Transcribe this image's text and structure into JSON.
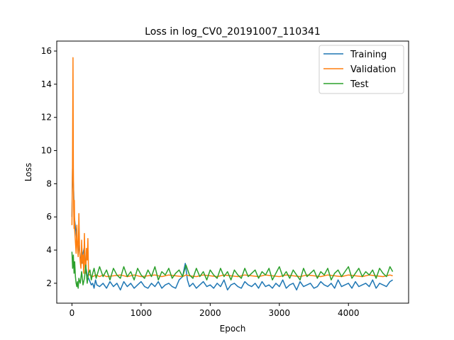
{
  "chart_data": {
    "type": "line",
    "title": "Loss in log_CV0_20191007_110341",
    "xlabel": "Epoch",
    "ylabel": "Loss",
    "xlim": [
      -220,
      4870
    ],
    "ylim": [
      0.8,
      16.6
    ],
    "xticks": [
      0,
      1000,
      2000,
      3000,
      4000
    ],
    "yticks": [
      2,
      4,
      6,
      8,
      10,
      12,
      14,
      16
    ],
    "grid": false,
    "legend_position": "top-right",
    "series": [
      {
        "name": "Training",
        "color": "#1f77b4",
        "x": [
          0,
          8,
          15,
          25,
          35,
          50,
          65,
          80,
          100,
          120,
          140,
          160,
          180,
          200,
          220,
          240,
          260,
          280,
          300,
          320,
          340,
          360,
          400,
          450,
          500,
          550,
          600,
          650,
          700,
          750,
          800,
          850,
          900,
          950,
          1000,
          1050,
          1100,
          1150,
          1200,
          1250,
          1300,
          1350,
          1400,
          1450,
          1500,
          1550,
          1600,
          1640,
          1670,
          1700,
          1750,
          1800,
          1850,
          1900,
          1950,
          2000,
          2050,
          2100,
          2150,
          2200,
          2250,
          2300,
          2350,
          2400,
          2450,
          2500,
          2550,
          2600,
          2650,
          2700,
          2750,
          2800,
          2850,
          2900,
          2950,
          3000,
          3050,
          3100,
          3150,
          3200,
          3250,
          3300,
          3350,
          3400,
          3450,
          3500,
          3550,
          3600,
          3650,
          3700,
          3750,
          3800,
          3850,
          3900,
          3950,
          4000,
          4050,
          4100,
          4150,
          4200,
          4250,
          4300,
          4350,
          4400,
          4450,
          4500,
          4550,
          4600,
          4640
        ],
        "y": [
          6.0,
          8.9,
          8.5,
          7.5,
          6.0,
          5.4,
          4.8,
          4.5,
          4.2,
          3.6,
          3.2,
          3.8,
          4.2,
          3.0,
          2.5,
          2.3,
          2.1,
          1.9,
          2.0,
          1.7,
          2.2,
          1.9,
          1.8,
          2.0,
          1.7,
          2.1,
          1.8,
          2.0,
          1.6,
          2.1,
          1.8,
          2.0,
          1.7,
          1.9,
          2.1,
          1.8,
          1.7,
          2.0,
          1.8,
          2.1,
          1.7,
          1.9,
          2.0,
          1.8,
          1.7,
          2.2,
          2.4,
          3.2,
          2.2,
          1.8,
          2.0,
          1.7,
          1.9,
          2.1,
          1.8,
          1.9,
          1.7,
          2.0,
          1.8,
          2.2,
          1.6,
          1.9,
          2.0,
          1.8,
          1.7,
          2.1,
          1.9,
          1.8,
          2.0,
          1.7,
          2.1,
          1.8,
          1.9,
          1.7,
          2.0,
          1.8,
          2.2,
          1.7,
          1.9,
          2.0,
          1.6,
          2.1,
          1.8,
          1.9,
          2.0,
          1.7,
          1.8,
          2.1,
          1.9,
          1.8,
          2.0,
          1.7,
          2.2,
          1.8,
          1.9,
          2.0,
          1.7,
          2.1,
          1.8,
          1.9,
          2.0,
          1.8,
          2.2,
          1.7,
          2.0,
          1.9,
          1.8,
          2.1,
          2.2
        ]
      },
      {
        "name": "Validation",
        "color": "#ff7f0e",
        "x": [
          0,
          8,
          15,
          20,
          25,
          30,
          35,
          40,
          50,
          60,
          70,
          80,
          90,
          100,
          110,
          120,
          130,
          140,
          150,
          160,
          170,
          180,
          190,
          200,
          210,
          220,
          230,
          240,
          250,
          260,
          280,
          300,
          350,
          400,
          450,
          500,
          600,
          700,
          800,
          900,
          1000,
          1100,
          1200,
          1300,
          1400,
          1500,
          1600,
          1650,
          1700,
          1800,
          1900,
          2000,
          2100,
          2200,
          2300,
          2400,
          2500,
          2600,
          2700,
          2800,
          2900,
          3000,
          3100,
          3200,
          3300,
          3400,
          3500,
          3600,
          3700,
          3800,
          3900,
          4000,
          4100,
          4200,
          4300,
          4400,
          4500,
          4600,
          4640
        ],
        "y": [
          5.5,
          8.9,
          15.6,
          9.0,
          6.5,
          5.3,
          7.0,
          5.2,
          4.5,
          3.8,
          5.5,
          4.2,
          3.6,
          6.2,
          4.0,
          3.3,
          2.9,
          4.6,
          3.2,
          3.7,
          2.6,
          5.0,
          3.0,
          2.6,
          4.1,
          3.4,
          4.7,
          2.6,
          2.5,
          2.5,
          2.45,
          2.4,
          2.5,
          2.4,
          2.5,
          2.4,
          2.45,
          2.5,
          2.4,
          2.5,
          2.4,
          2.45,
          2.5,
          2.4,
          2.5,
          2.45,
          2.4,
          2.5,
          2.45,
          2.4,
          2.5,
          2.45,
          2.4,
          2.5,
          2.45,
          2.4,
          2.5,
          2.45,
          2.4,
          2.5,
          2.45,
          2.4,
          2.5,
          2.45,
          2.4,
          2.5,
          2.45,
          2.4,
          2.5,
          2.45,
          2.4,
          2.5,
          2.45,
          2.4,
          2.5,
          2.45,
          2.4,
          2.5,
          2.45
        ]
      },
      {
        "name": "Test",
        "color": "#2ca02c",
        "x": [
          0,
          10,
          20,
          30,
          40,
          50,
          60,
          70,
          80,
          90,
          100,
          120,
          140,
          160,
          180,
          200,
          220,
          240,
          260,
          280,
          300,
          320,
          350,
          400,
          450,
          500,
          550,
          600,
          650,
          700,
          750,
          800,
          850,
          900,
          950,
          1000,
          1050,
          1100,
          1150,
          1200,
          1250,
          1300,
          1350,
          1400,
          1450,
          1500,
          1550,
          1600,
          1650,
          1700,
          1750,
          1800,
          1850,
          1900,
          1950,
          2000,
          2050,
          2100,
          2150,
          2200,
          2250,
          2300,
          2350,
          2400,
          2450,
          2500,
          2550,
          2600,
          2650,
          2700,
          2750,
          2800,
          2850,
          2900,
          2950,
          3000,
          3050,
          3100,
          3150,
          3200,
          3250,
          3300,
          3350,
          3400,
          3450,
          3500,
          3550,
          3600,
          3650,
          3700,
          3750,
          3800,
          3850,
          3900,
          3950,
          4000,
          4050,
          4100,
          4150,
          4200,
          4250,
          4300,
          4350,
          4400,
          4450,
          4500,
          4550,
          4600,
          4640
        ],
        "y": [
          3.9,
          2.9,
          3.7,
          2.6,
          3.3,
          2.4,
          2.0,
          1.8,
          2.1,
          1.7,
          2.3,
          2.0,
          2.7,
          1.9,
          2.3,
          3.1,
          2.0,
          2.6,
          2.8,
          2.2,
          2.6,
          2.9,
          2.3,
          3.0,
          2.4,
          2.8,
          2.2,
          2.9,
          2.5,
          2.3,
          3.0,
          2.4,
          2.7,
          2.2,
          2.9,
          2.5,
          2.3,
          2.8,
          2.4,
          3.0,
          2.2,
          2.7,
          2.5,
          2.9,
          2.3,
          2.6,
          2.8,
          2.4,
          3.1,
          2.5,
          2.3,
          2.9,
          2.4,
          2.7,
          2.2,
          2.8,
          2.5,
          2.3,
          2.9,
          2.4,
          2.7,
          2.2,
          2.8,
          2.5,
          2.3,
          2.9,
          2.4,
          2.6,
          2.8,
          2.3,
          2.7,
          2.5,
          2.9,
          2.2,
          2.6,
          3.0,
          2.4,
          2.7,
          2.3,
          2.8,
          2.5,
          2.2,
          2.9,
          2.4,
          2.6,
          2.8,
          2.3,
          2.7,
          2.5,
          2.9,
          2.2,
          2.6,
          2.8,
          2.4,
          2.7,
          3.0,
          2.3,
          2.6,
          2.9,
          2.4,
          2.7,
          2.5,
          2.8,
          2.3,
          2.9,
          2.6,
          2.4,
          3.0,
          2.7
        ]
      }
    ]
  }
}
